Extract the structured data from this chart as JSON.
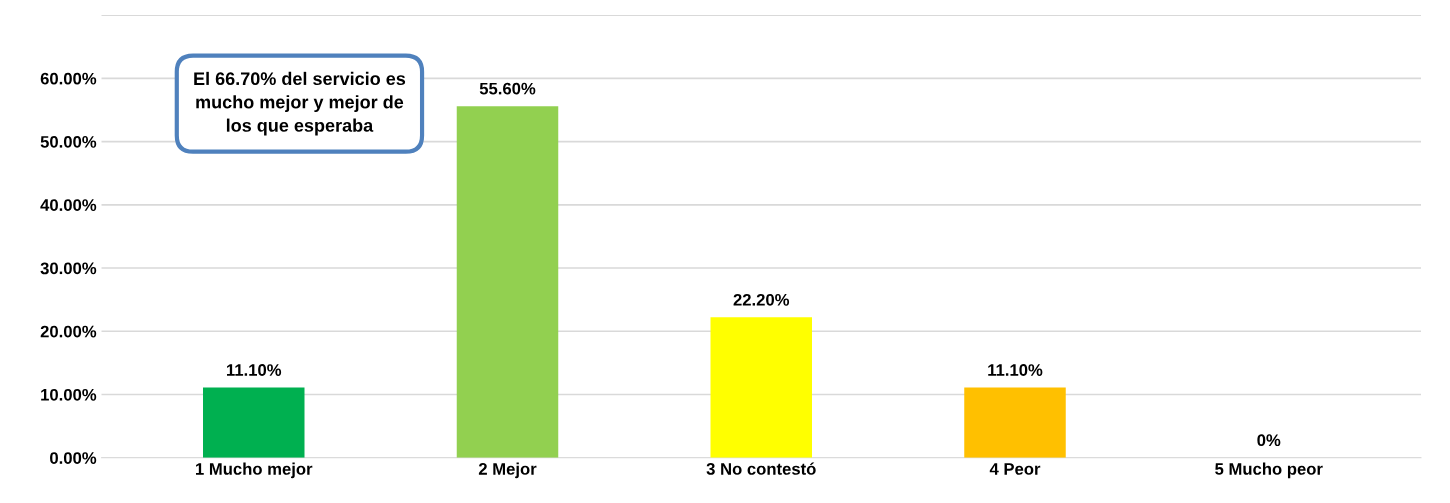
{
  "chart_data": {
    "type": "bar",
    "categories": [
      "1 Mucho mejor",
      "2 Mejor",
      "3 No contestó",
      "4 Peor",
      "5 Mucho peor"
    ],
    "values": [
      11.1,
      55.6,
      22.2,
      11.1,
      0
    ],
    "colors": [
      "#00b050",
      "#92d050",
      "#ffff00",
      "#ffc000",
      "#c00000"
    ],
    "value_labels": [
      "11.10%",
      "55.60%",
      "22.20%",
      "11.10%",
      "0%"
    ],
    "ylim": [
      0,
      70
    ],
    "yticks": [
      {
        "value": 0,
        "label": "0.00%"
      },
      {
        "value": 10,
        "label": "10.00%"
      },
      {
        "value": 20,
        "label": "20.00%"
      },
      {
        "value": 30,
        "label": "30.00%"
      },
      {
        "value": 40,
        "label": "40.00%"
      },
      {
        "value": 50,
        "label": "50.00%"
      },
      {
        "value": 60,
        "label": "60.00%"
      },
      {
        "value": 70,
        "label": null
      }
    ],
    "grid": "y",
    "annotations": [
      "El 66.70% del servicio es\nmucho mejor y mejor de\nlos que esperaba"
    ]
  }
}
